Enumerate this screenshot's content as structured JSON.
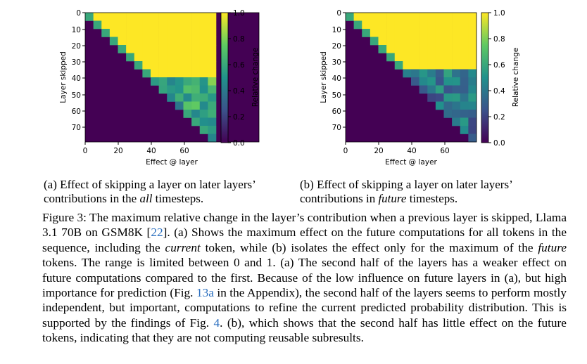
{
  "panel_a": {
    "xlabel": "Effect @ layer",
    "ylabel": "Layer skipped",
    "colorbar_label": "Relative change",
    "x_ticks": [
      "0",
      "20",
      "40",
      "60"
    ],
    "y_ticks": [
      "0",
      "10",
      "20",
      "30",
      "40",
      "50",
      "60",
      "70"
    ],
    "colorbar_ticks": [
      "0.0",
      "0.2",
      "0.4",
      "0.6",
      "0.8",
      "1.0"
    ]
  },
  "panel_b": {
    "xlabel": "Effect @ layer",
    "ylabel": "Layer skipped",
    "colorbar_label": "Relative change",
    "x_ticks": [
      "0",
      "20",
      "40",
      "60"
    ],
    "y_ticks": [
      "0",
      "10",
      "20",
      "30",
      "40",
      "50",
      "60",
      "70"
    ],
    "colorbar_ticks": [
      "0.0",
      "0.2",
      "0.4",
      "0.6",
      "0.8",
      "1.0"
    ]
  },
  "subcaption_a": {
    "line1": "(a) Effect of skipping a layer on later layers’",
    "line2_pre": "contributions in the ",
    "line2_em": "all",
    "line2_post": " timesteps."
  },
  "subcaption_b": {
    "line1": "(b) Effect of skipping a layer on later layers’",
    "line2_pre": "contributions in ",
    "line2_em": "future",
    "line2_post": " timesteps."
  },
  "caption": {
    "s1": "Figure 3: The maximum relative change in the layer’s contribution when a previous layer is skipped, Llama 3.1 70B on GSM8K [",
    "ref1": "22",
    "s2": "]. (a) Shows the maximum effect on the future computations for all tokens in the sequence, including the ",
    "em1": "current",
    "s3": " token, while (b) isolates the effect only for the maximum of the ",
    "em2": "future",
    "s4": " tokens. The range is limited between 0 and 1. (a) The second half of the layers has a weaker effect on future computations compared to the first. Because of the low influence on future layers in (a), but high importance for prediction (Fig. ",
    "ref2": "13a",
    "s5": " in the Appendix), the second half of the layers seems to perform mostly independent, but important, computations to refine the current predicted probability distribution. This is supported by the findings of Fig. ",
    "ref3": "4",
    "s6": ". (b), which shows that the second half has little effect on the future tokens, indicating that they are not computing reusable subresults."
  },
  "chart_data": [
    {
      "type": "heatmap",
      "xlabel": "Effect @ layer",
      "ylabel": "Layer skipped",
      "colorbar_label": "Relative change",
      "xlim": [
        0,
        79
      ],
      "ylim": [
        79,
        0
      ],
      "clim": [
        0.0,
        1.0
      ],
      "colormap": "viridis",
      "description_values": {
        "region_below_diagonal": 0.0,
        "upper_triangle_rows_0_to_35": 1.0,
        "upper_triangle_rows_40_to_79": 0.55
      }
    },
    {
      "type": "heatmap",
      "xlabel": "Effect @ layer",
      "ylabel": "Layer skipped",
      "colorbar_label": "Relative change",
      "xlim": [
        0,
        79
      ],
      "ylim": [
        79,
        0
      ],
      "clim": [
        0.0,
        1.0
      ],
      "colormap": "viridis",
      "description_values": {
        "region_below_diagonal": 0.0,
        "upper_triangle_rows_0_to_30": 1.0,
        "upper_triangle_rows_35_to_79": 0.35
      }
    }
  ],
  "colors": {
    "viridis_low": "#440154",
    "viridis_high": "#fde725",
    "link": "#2a6fbf"
  }
}
